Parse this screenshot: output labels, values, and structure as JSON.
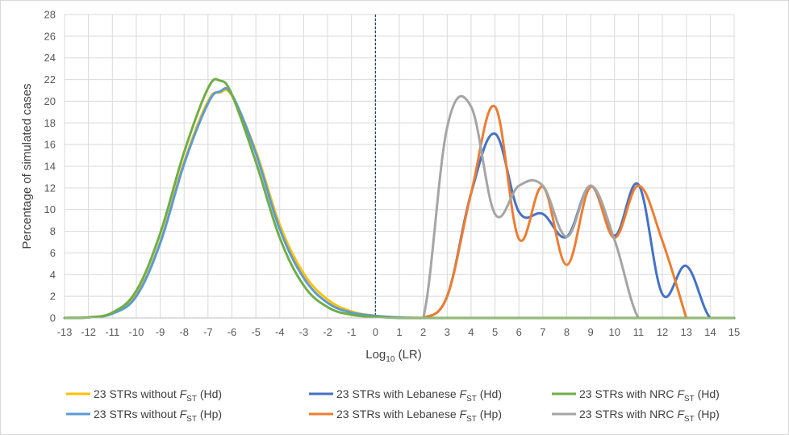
{
  "chart_data": {
    "type": "line",
    "title": "",
    "xlabel": {
      "base": "Log",
      "sub": "10",
      "rest": " (LR)"
    },
    "ylabel": "Percentage of simulated cases",
    "xlim": [
      -13,
      15
    ],
    "ylim": [
      0,
      28
    ],
    "x_ticks": [
      -13,
      -12,
      -11,
      -10,
      -9,
      -8,
      -7,
      -6,
      -5,
      -4,
      -3,
      -2,
      -1,
      0,
      1,
      2,
      3,
      4,
      5,
      6,
      7,
      8,
      9,
      10,
      11,
      12,
      13,
      14,
      15
    ],
    "y_ticks": [
      0,
      2,
      4,
      6,
      8,
      10,
      12,
      14,
      16,
      18,
      20,
      22,
      24,
      26,
      28
    ],
    "grid": true,
    "reference_line_x": 0,
    "legend_position": "bottom",
    "series": [
      {
        "name": "23 STRs without FST (Hd)",
        "label": {
          "pre": "23 STRs without ",
          "sub": "ST",
          "post": " (Hd)"
        },
        "color": "#FFC000",
        "x": [
          -13,
          -12,
          -11,
          -10,
          -9,
          -8,
          -7,
          -6.5,
          -6,
          -5,
          -4,
          -3,
          -2,
          -1,
          0,
          1,
          2
        ],
        "y": [
          0,
          0.05,
          0.45,
          2.1,
          7.0,
          14.4,
          20.0,
          20.8,
          20.5,
          15.4,
          8.6,
          4.1,
          1.7,
          0.6,
          0.2,
          0.05,
          0
        ]
      },
      {
        "name": "23 STRs without FST (Hp)",
        "label": {
          "pre": "23 STRs without ",
          "sub": "ST",
          "post": " (Hp)"
        },
        "color": "#5B9BD5",
        "x": [
          -13,
          -12,
          -11,
          -10,
          -9,
          -8,
          -7,
          -6.5,
          -6,
          -5,
          -4,
          -3,
          -2,
          -1,
          0,
          1,
          2
        ],
        "y": [
          0,
          0.05,
          0.4,
          2.0,
          6.9,
          14.2,
          19.8,
          20.9,
          20.6,
          15.2,
          8.2,
          3.7,
          1.4,
          0.5,
          0.2,
          0.05,
          0
        ]
      },
      {
        "name": "23 STRs with Lebanese FST (Hd)",
        "label": {
          "pre": "23 STRs with Lebanese ",
          "sub": "ST",
          "post": " (Hd)"
        },
        "color": "#4472C4",
        "x": [
          1,
          2,
          3,
          4,
          5,
          6,
          7,
          8,
          9,
          10,
          11,
          12,
          13,
          14,
          15
        ],
        "y": [
          0,
          0,
          2.0,
          11.5,
          17.0,
          9.8,
          9.6,
          7.5,
          12.2,
          7.6,
          12.3,
          2.2,
          4.8,
          0,
          0
        ]
      },
      {
        "name": "23 STRs with Lebanese FST (Hp)",
        "label": {
          "pre": "23 STRs with Lebanese ",
          "sub": "ST",
          "post": " (Hp)"
        },
        "color": "#ED7D31",
        "x": [
          1,
          2,
          3,
          4,
          5,
          6,
          7,
          8,
          9,
          10,
          11,
          12,
          13
        ],
        "y": [
          0,
          0,
          2.0,
          11.5,
          19.5,
          7.3,
          12.1,
          4.9,
          12.1,
          7.4,
          12.2,
          7.1,
          0
        ]
      },
      {
        "name": "23 STRs with NRC FST (Hd)",
        "label": {
          "pre": "23 STRs with NRC ",
          "sub": "ST",
          "post": " (Hd)"
        },
        "color": "#70AD47",
        "x": [
          -13,
          -12,
          -11,
          -10,
          -9,
          -8,
          -7,
          -6.5,
          -6,
          -5,
          -4,
          -3,
          -2,
          -1,
          0,
          1,
          2,
          3,
          5,
          7,
          9,
          11,
          13,
          15
        ],
        "y": [
          0,
          0.05,
          0.5,
          2.5,
          7.8,
          15.3,
          21.2,
          21.9,
          20.6,
          14.4,
          7.4,
          3.0,
          1.0,
          0.3,
          0.1,
          0,
          0,
          0,
          0,
          0,
          0,
          0,
          0,
          0
        ]
      },
      {
        "name": "23 STRs with NRC FST (Hp)",
        "label": {
          "pre": "23 STRs with NRC ",
          "sub": "ST",
          "post": " (Hp)"
        },
        "color": "#A5A5A5",
        "x": [
          1,
          2,
          3,
          4,
          5,
          6,
          7,
          8,
          9,
          10,
          11,
          12,
          13,
          14,
          15
        ],
        "y": [
          0,
          0,
          17.6,
          19.5,
          9.6,
          12.2,
          12.2,
          7.5,
          12.2,
          7.2,
          0,
          0,
          0,
          0,
          0
        ]
      }
    ]
  }
}
